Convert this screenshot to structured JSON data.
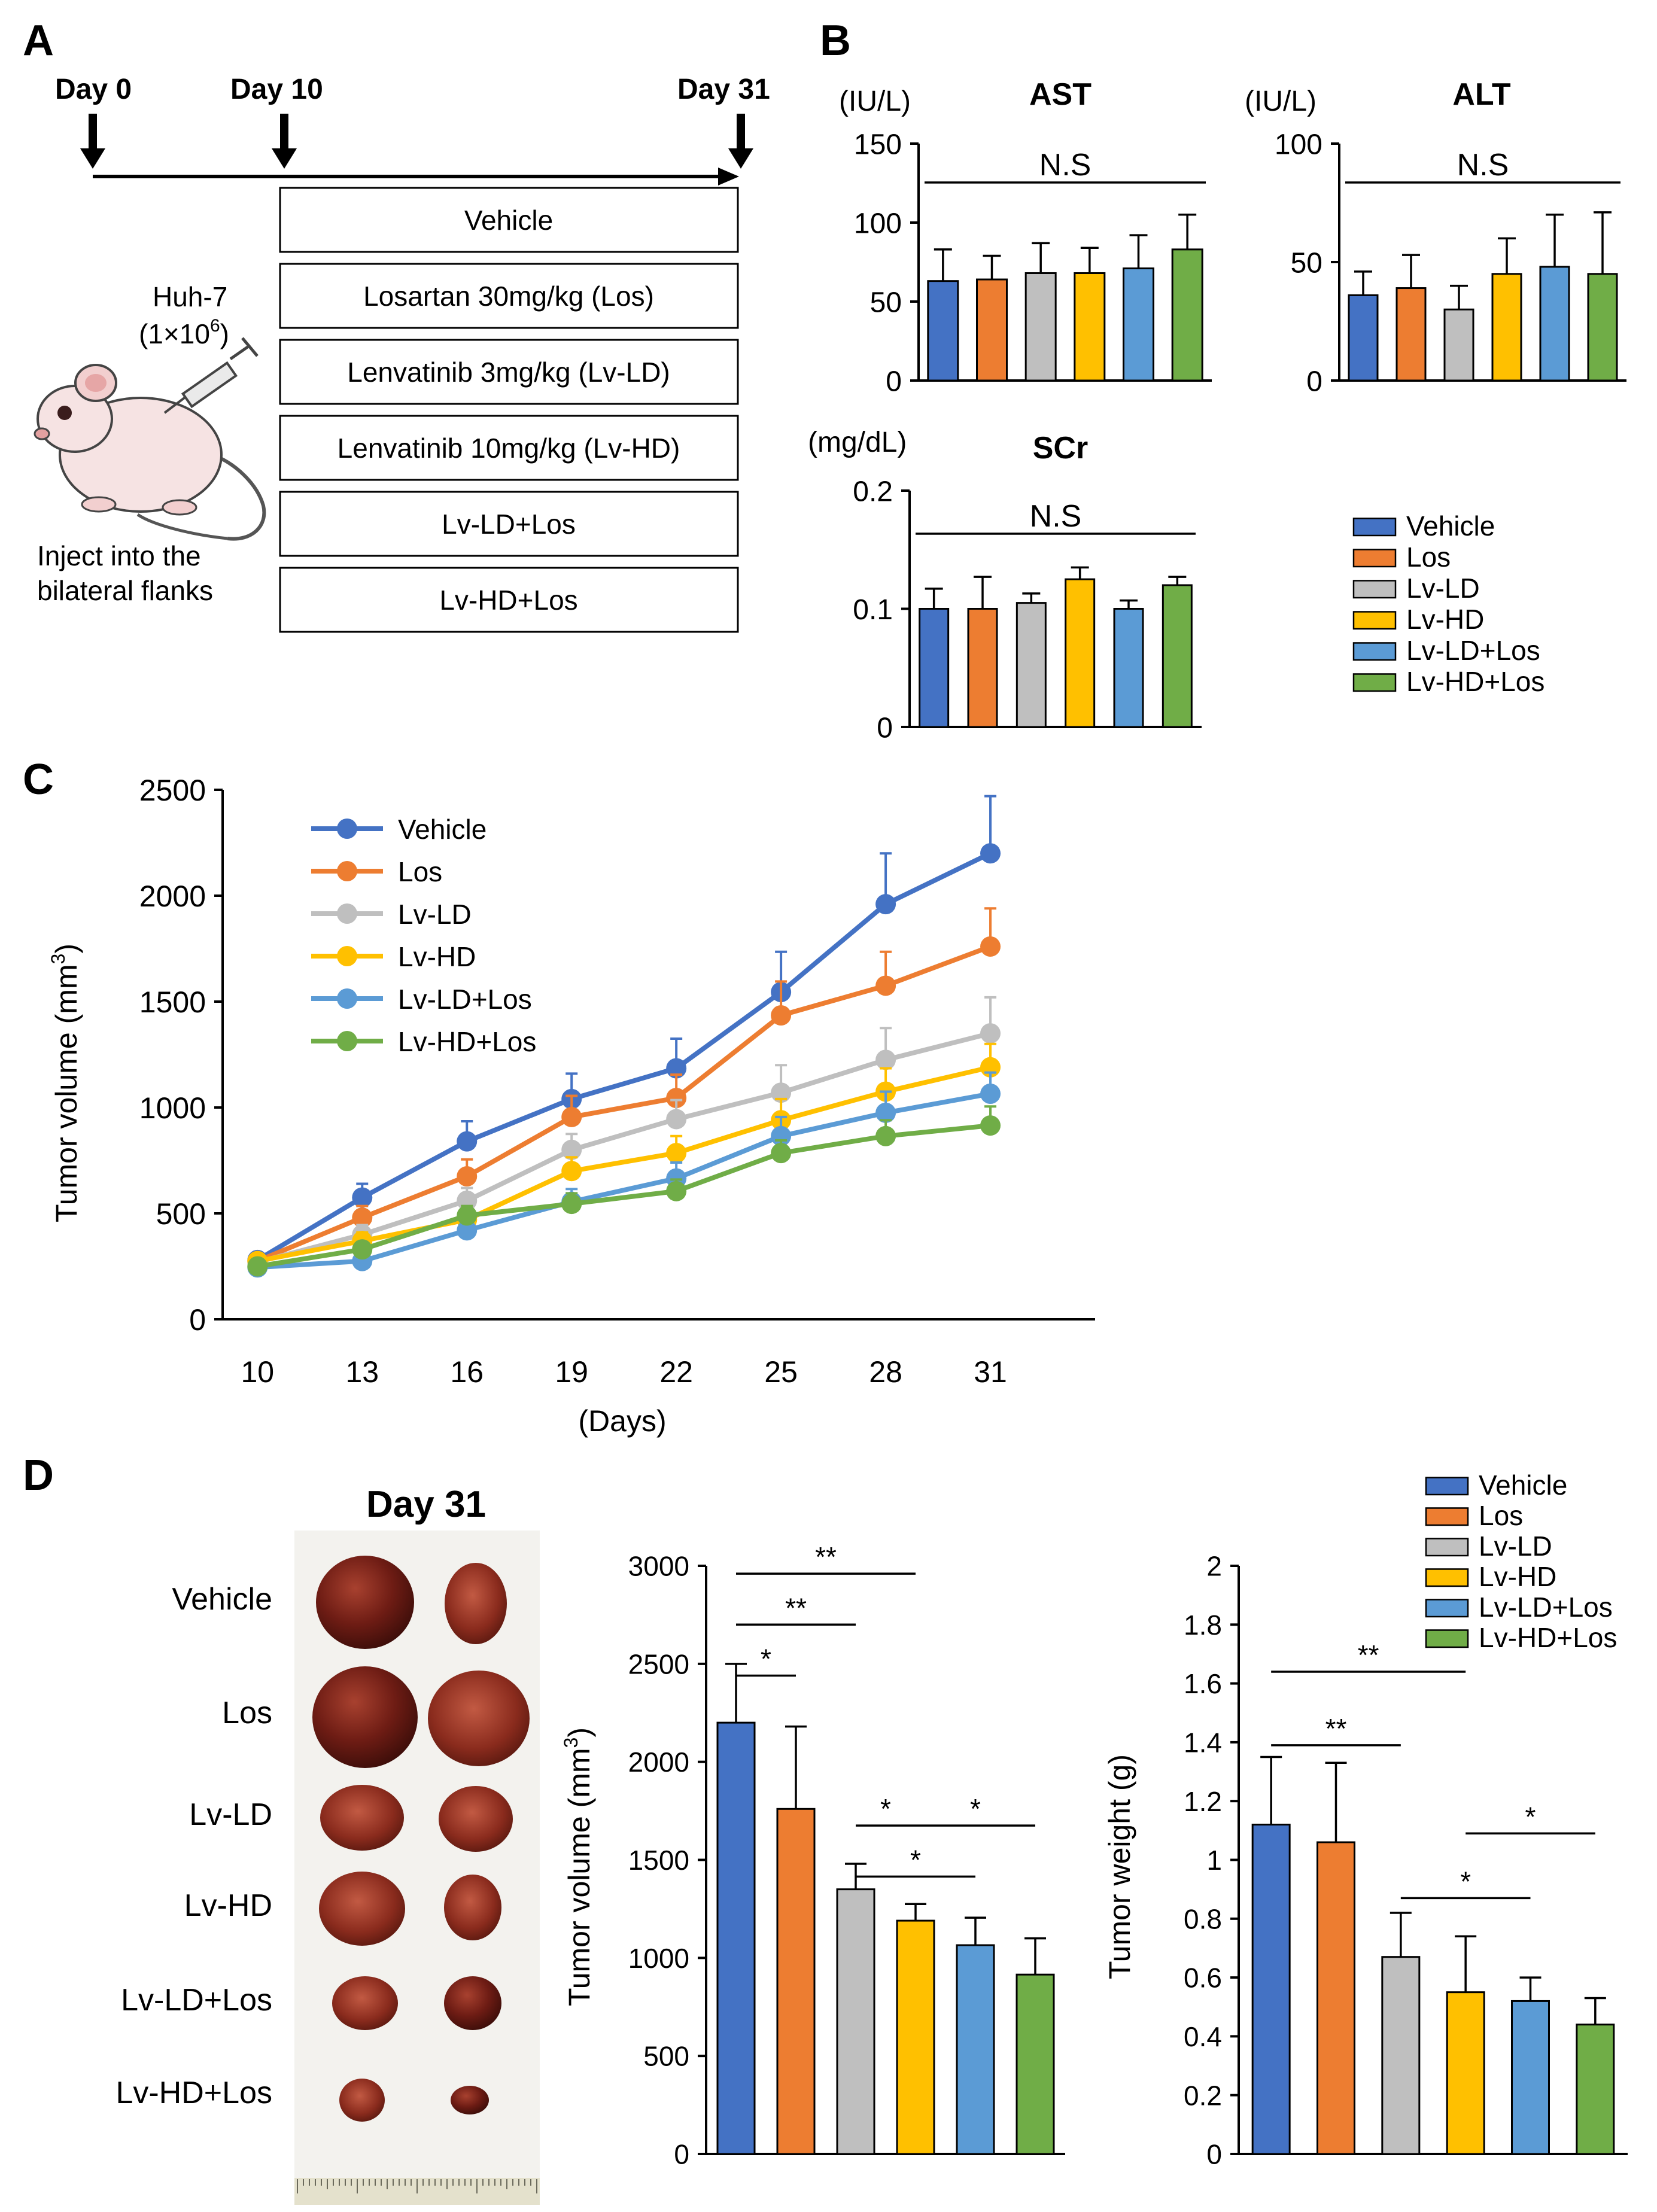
{
  "figure": {
    "colors": {
      "Vehicle": "#4472C4",
      "Los": "#ED7D31",
      "Lv-LD": "#BFBFBF",
      "Lv-HD": "#FFC000",
      "Lv-LD+Los": "#5B9BD5",
      "Lv-HD+Los": "#70AD47"
    }
  },
  "panel_a": {
    "letter": "A",
    "day0": "Day 0",
    "day10": "Day 10",
    "day31": "Day 31",
    "cell_line": "Huh-7",
    "cell_count": "(1×10",
    "cell_exp": "6",
    "cell_close": ")",
    "inject_line1": "Inject into the",
    "inject_line2": "bilateral flanks",
    "groups": [
      "Vehicle",
      "Losartan 30mg/kg (Los)",
      "Lenvatinib 3mg/kg (Lv-LD)",
      "Lenvatinib 10mg/kg (Lv-HD)",
      "Lv-LD+Los",
      "Lv-HD+Los"
    ]
  },
  "panel_b": {
    "letter": "B",
    "legend": [
      "Vehicle",
      "Los",
      "Lv-LD",
      "Lv-HD",
      "Lv-LD+Los",
      "Lv-HD+Los"
    ]
  },
  "panel_c": {
    "letter": "C"
  },
  "panel_d": {
    "letter": "D",
    "photo_title": "Day 31",
    "photo_rows": [
      "Vehicle",
      "Los",
      "Lv-LD",
      "Lv-HD",
      "Lv-LD+Los",
      "Lv-HD+Los"
    ],
    "legend": [
      "Vehicle",
      "Los",
      "Lv-LD",
      "Lv-HD",
      "Lv-LD+Los",
      "Lv-HD+Los"
    ]
  },
  "chart_data": [
    {
      "id": "ast",
      "type": "bar",
      "title": "AST",
      "unit": "(IU/L)",
      "categories": [
        "Vehicle",
        "Los",
        "Lv-LD",
        "Lv-HD",
        "Lv-LD+Los",
        "Lv-HD+Los"
      ],
      "values": [
        63,
        64,
        68,
        68,
        71,
        83
      ],
      "errors": [
        20,
        15,
        19,
        16,
        21,
        22
      ],
      "ylim": [
        0,
        150
      ],
      "yticks": [
        0,
        50,
        100,
        150
      ],
      "significance": [
        {
          "from": 0,
          "to": 5,
          "label": "N.S"
        }
      ]
    },
    {
      "id": "alt",
      "type": "bar",
      "title": "ALT",
      "unit": "(IU/L)",
      "categories": [
        "Vehicle",
        "Los",
        "Lv-LD",
        "Lv-HD",
        "Lv-LD+Los",
        "Lv-HD+Los"
      ],
      "values": [
        36,
        39,
        30,
        45,
        48,
        45
      ],
      "errors": [
        10,
        14,
        10,
        15,
        22,
        26
      ],
      "ylim": [
        0,
        100
      ],
      "yticks": [
        0,
        50,
        100
      ],
      "significance": [
        {
          "from": 0,
          "to": 5,
          "label": "N.S"
        }
      ]
    },
    {
      "id": "scr",
      "type": "bar",
      "title": "SCr",
      "unit": "(mg/dL)",
      "categories": [
        "Vehicle",
        "Los",
        "Lv-LD",
        "Lv-HD",
        "Lv-LD+Los",
        "Lv-HD+Los"
      ],
      "values": [
        0.1,
        0.1,
        0.105,
        0.125,
        0.1,
        0.12
      ],
      "errors": [
        0.017,
        0.027,
        0.008,
        0.01,
        0.007,
        0.007
      ],
      "ylim": [
        0,
        0.2
      ],
      "yticks": [
        0,
        0.1,
        0.2
      ],
      "significance": [
        {
          "from": 0,
          "to": 5,
          "label": "N.S"
        }
      ]
    },
    {
      "id": "growth",
      "type": "line",
      "xlabel": "(Days)",
      "ylabel": "Tumor volume (mm",
      "ylabel_sup": "3",
      "ylabel_end": ")",
      "x": [
        10,
        13,
        16,
        19,
        22,
        25,
        28,
        31
      ],
      "xlim": [
        9,
        34
      ],
      "ylim": [
        0,
        2500
      ],
      "yticks": [
        0,
        500,
        1000,
        1500,
        2000,
        2500
      ],
      "series": [
        {
          "name": "Vehicle",
          "values": [
            280,
            575,
            840,
            1040,
            1185,
            1545,
            1960,
            2200
          ],
          "errors": [
            30,
            65,
            95,
            120,
            140,
            190,
            240,
            270
          ]
        },
        {
          "name": "Los",
          "values": [
            275,
            480,
            675,
            955,
            1045,
            1435,
            1575,
            1760
          ],
          "errors": [
            25,
            55,
            80,
            100,
            110,
            160,
            160,
            180
          ]
        },
        {
          "name": "Lv-LD",
          "values": [
            270,
            400,
            560,
            800,
            945,
            1070,
            1225,
            1350
          ],
          "errors": [
            20,
            45,
            60,
            75,
            90,
            130,
            150,
            170
          ]
        },
        {
          "name": "Lv-HD",
          "values": [
            275,
            370,
            470,
            700,
            785,
            940,
            1075,
            1190
          ],
          "errors": [
            20,
            40,
            55,
            65,
            80,
            100,
            110,
            110
          ]
        },
        {
          "name": "Lv-LD+Los",
          "values": [
            245,
            275,
            420,
            555,
            665,
            865,
            975,
            1065
          ],
          "errors": [
            20,
            30,
            45,
            60,
            75,
            90,
            100,
            100
          ]
        },
        {
          "name": "Lv-HD+Los",
          "values": [
            250,
            330,
            490,
            545,
            605,
            785,
            865,
            915
          ],
          "errors": [
            20,
            35,
            45,
            50,
            55,
            60,
            75,
            90
          ]
        }
      ]
    },
    {
      "id": "volume",
      "type": "bar",
      "ylabel": "Tumor volume (mm",
      "ylabel_sup": "3",
      "ylabel_end": ")",
      "categories": [
        "Vehicle",
        "Los",
        "Lv-LD",
        "Lv-HD",
        "Lv-LD+Los",
        "Lv-HD+Los"
      ],
      "values": [
        2200,
        1760,
        1350,
        1190,
        1065,
        915
      ],
      "errors": [
        300,
        420,
        130,
        85,
        140,
        185
      ],
      "ylim": [
        0,
        3000
      ],
      "yticks": [
        0,
        500,
        1000,
        1500,
        2000,
        2500,
        3000
      ],
      "significance": [
        {
          "from": 0,
          "to": 1,
          "y": 2440,
          "label": "*"
        },
        {
          "from": 0,
          "to": 2,
          "y": 2700,
          "label": "**"
        },
        {
          "from": 0,
          "to": 3,
          "y": 2960,
          "label": "**"
        },
        {
          "from": 2,
          "to": 3,
          "y": 1675,
          "label": "*"
        },
        {
          "from": 3,
          "to": 5,
          "y": 1675,
          "label": "*"
        },
        {
          "from": 2,
          "to": 4,
          "y": 1415,
          "label": "*"
        }
      ]
    },
    {
      "id": "weight",
      "type": "bar",
      "ylabel": "Tumor weight (g)",
      "categories": [
        "Vehicle",
        "Los",
        "Lv-LD",
        "Lv-HD",
        "Lv-LD+Los",
        "Lv-HD+Los"
      ],
      "values": [
        1.12,
        1.06,
        0.67,
        0.55,
        0.52,
        0.44
      ],
      "errors": [
        0.23,
        0.27,
        0.15,
        0.19,
        0.08,
        0.09
      ],
      "ylim": [
        0,
        2
      ],
      "yticks": [
        0,
        0.2,
        0.4,
        0.6,
        0.8,
        1,
        1.2,
        1.4,
        1.6,
        1.8,
        2
      ],
      "significance": [
        {
          "from": 0,
          "to": 2,
          "y": 1.39,
          "label": "**"
        },
        {
          "from": 0,
          "to": 3,
          "y": 1.64,
          "label": "**"
        },
        {
          "from": 2,
          "to": 4,
          "y": 0.87,
          "label": "*"
        },
        {
          "from": 3,
          "to": 5,
          "y": 1.09,
          "label": "*"
        }
      ]
    }
  ]
}
